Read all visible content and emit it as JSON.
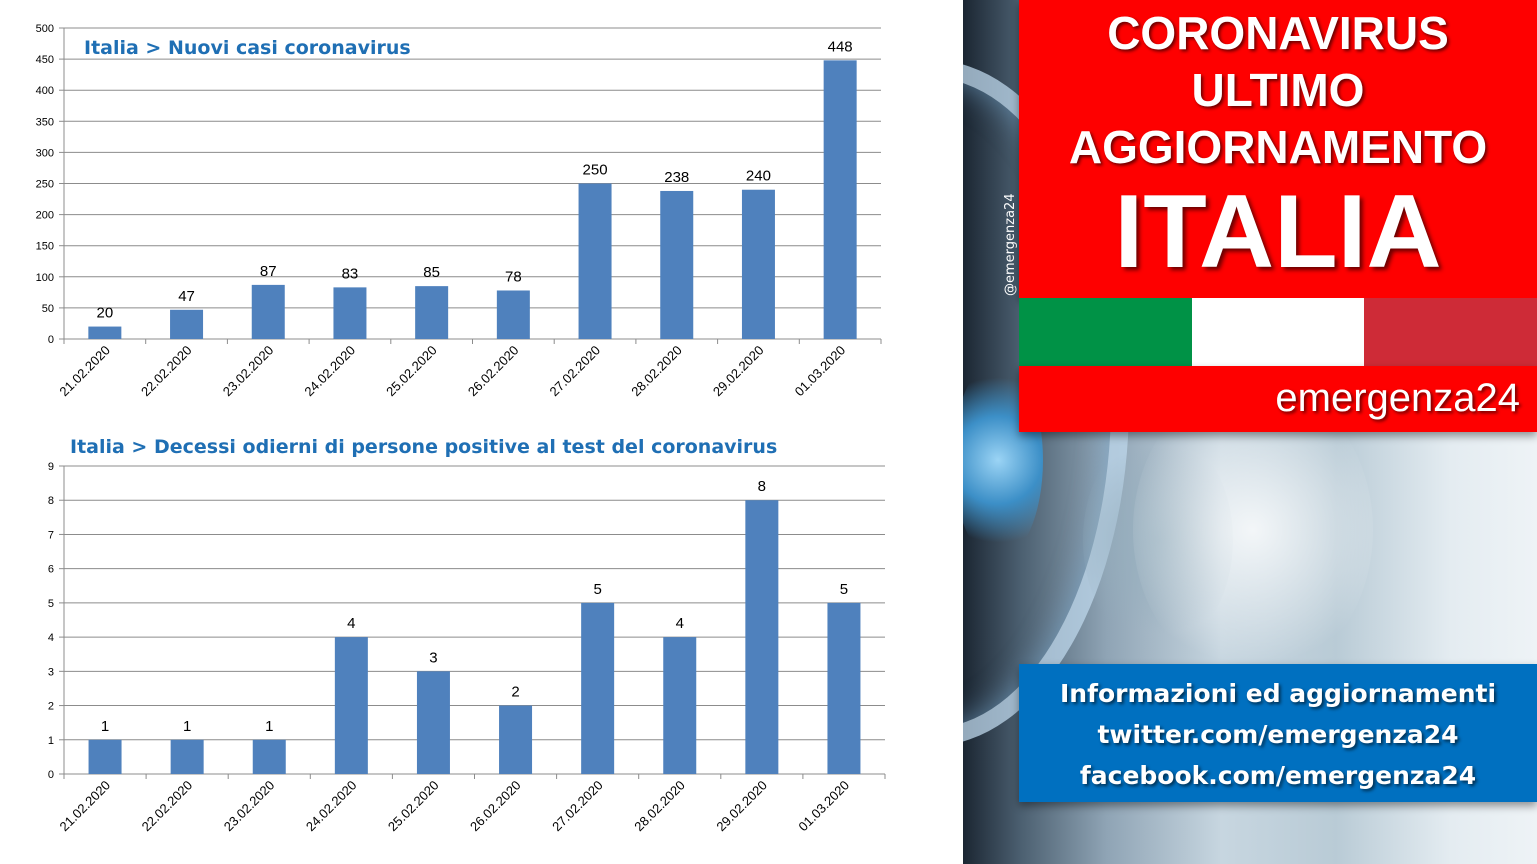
{
  "colors": {
    "bar": "#4f81bd",
    "chart_title": "#1f6fb4",
    "red": "#fe0000",
    "blue": "#0070c0",
    "flag_green": "#009246",
    "flag_white": "#ffffff",
    "flag_red": "#ce2b37"
  },
  "chart_data": [
    {
      "type": "bar",
      "title": "Italia > Nuovi casi coronavirus",
      "categories": [
        "21.02.2020",
        "22.02.2020",
        "23.02.2020",
        "24.02.2020",
        "25.02.2020",
        "26.02.2020",
        "27.02.2020",
        "28.02.2020",
        "29.02.2020",
        "01.03.2020"
      ],
      "values": [
        20,
        47,
        87,
        83,
        85,
        78,
        250,
        238,
        240,
        448
      ],
      "ylim": [
        0,
        500
      ],
      "yticks": [
        0,
        50,
        100,
        150,
        200,
        250,
        300,
        350,
        400,
        450,
        500
      ],
      "grid": true
    },
    {
      "type": "bar",
      "title": "Italia > Decessi odierni di persone positive al test del coronavirus",
      "categories": [
        "21.02.2020",
        "22.02.2020",
        "23.02.2020",
        "24.02.2020",
        "25.02.2020",
        "26.02.2020",
        "27.02.2020",
        "28.02.2020",
        "29.02.2020",
        "01.03.2020"
      ],
      "values": [
        1,
        1,
        1,
        4,
        3,
        2,
        5,
        4,
        8,
        5
      ],
      "ylim": [
        0,
        9
      ],
      "yticks": [
        0,
        1,
        2,
        3,
        4,
        5,
        6,
        7,
        8,
        9
      ],
      "grid": true
    }
  ],
  "handle": "@emergenza24",
  "title_box": {
    "line1": "CORONAVIRUS",
    "line2": "ULTIMO",
    "line3": "AGGIORNAMENTO",
    "country": "ITALIA"
  },
  "brand": "emergenza24",
  "info": {
    "line1": "Informazioni ed aggiornamenti",
    "line2": "twitter.com/emergenza24",
    "line3": "facebook.com/emergenza24"
  }
}
